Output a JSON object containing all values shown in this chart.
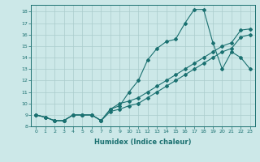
{
  "title": "",
  "xlabel": "Humidex (Indice chaleur)",
  "bg_color": "#cce8e8",
  "grid_color": "#aacccc",
  "line_color": "#1a7070",
  "xlim": [
    -0.5,
    23.5
  ],
  "ylim": [
    8,
    18.6
  ],
  "yticks": [
    8,
    9,
    10,
    11,
    12,
    13,
    14,
    15,
    16,
    17,
    18
  ],
  "xticks": [
    0,
    1,
    2,
    3,
    4,
    5,
    6,
    7,
    8,
    9,
    10,
    11,
    12,
    13,
    14,
    15,
    16,
    17,
    18,
    19,
    20,
    21,
    22,
    23
  ],
  "series1_x": [
    0,
    1,
    2,
    3,
    4,
    5,
    6,
    7,
    8,
    9,
    10,
    11,
    12,
    13,
    14,
    15,
    16,
    17,
    18,
    19,
    20,
    21,
    22,
    23
  ],
  "series1_y": [
    9.0,
    8.8,
    8.5,
    8.5,
    9.0,
    9.0,
    9.0,
    8.5,
    9.5,
    9.8,
    11.0,
    12.0,
    13.8,
    14.8,
    15.4,
    15.6,
    17.0,
    18.2,
    18.2,
    15.3,
    13.0,
    14.5,
    14.0,
    13.0
  ],
  "series2_x": [
    0,
    1,
    2,
    3,
    4,
    5,
    6,
    7,
    8,
    9,
    10,
    11,
    12,
    13,
    14,
    15,
    16,
    17,
    18,
    19,
    20,
    21,
    22,
    23
  ],
  "series2_y": [
    9.0,
    8.8,
    8.5,
    8.5,
    9.0,
    9.0,
    9.0,
    8.5,
    9.5,
    10.0,
    10.2,
    10.5,
    11.0,
    11.5,
    12.0,
    12.5,
    13.0,
    13.5,
    14.0,
    14.5,
    15.0,
    15.3,
    16.4,
    16.5
  ],
  "series3_x": [
    0,
    1,
    2,
    3,
    4,
    5,
    6,
    7,
    8,
    9,
    10,
    11,
    12,
    13,
    14,
    15,
    16,
    17,
    18,
    19,
    20,
    21,
    22,
    23
  ],
  "series3_y": [
    9.0,
    8.8,
    8.5,
    8.5,
    9.0,
    9.0,
    9.0,
    8.5,
    9.3,
    9.5,
    9.8,
    10.0,
    10.5,
    11.0,
    11.5,
    12.0,
    12.5,
    13.0,
    13.5,
    14.0,
    14.5,
    14.8,
    15.8,
    16.0
  ],
  "marker": "D",
  "markersize": 2.0,
  "linewidth": 0.8
}
